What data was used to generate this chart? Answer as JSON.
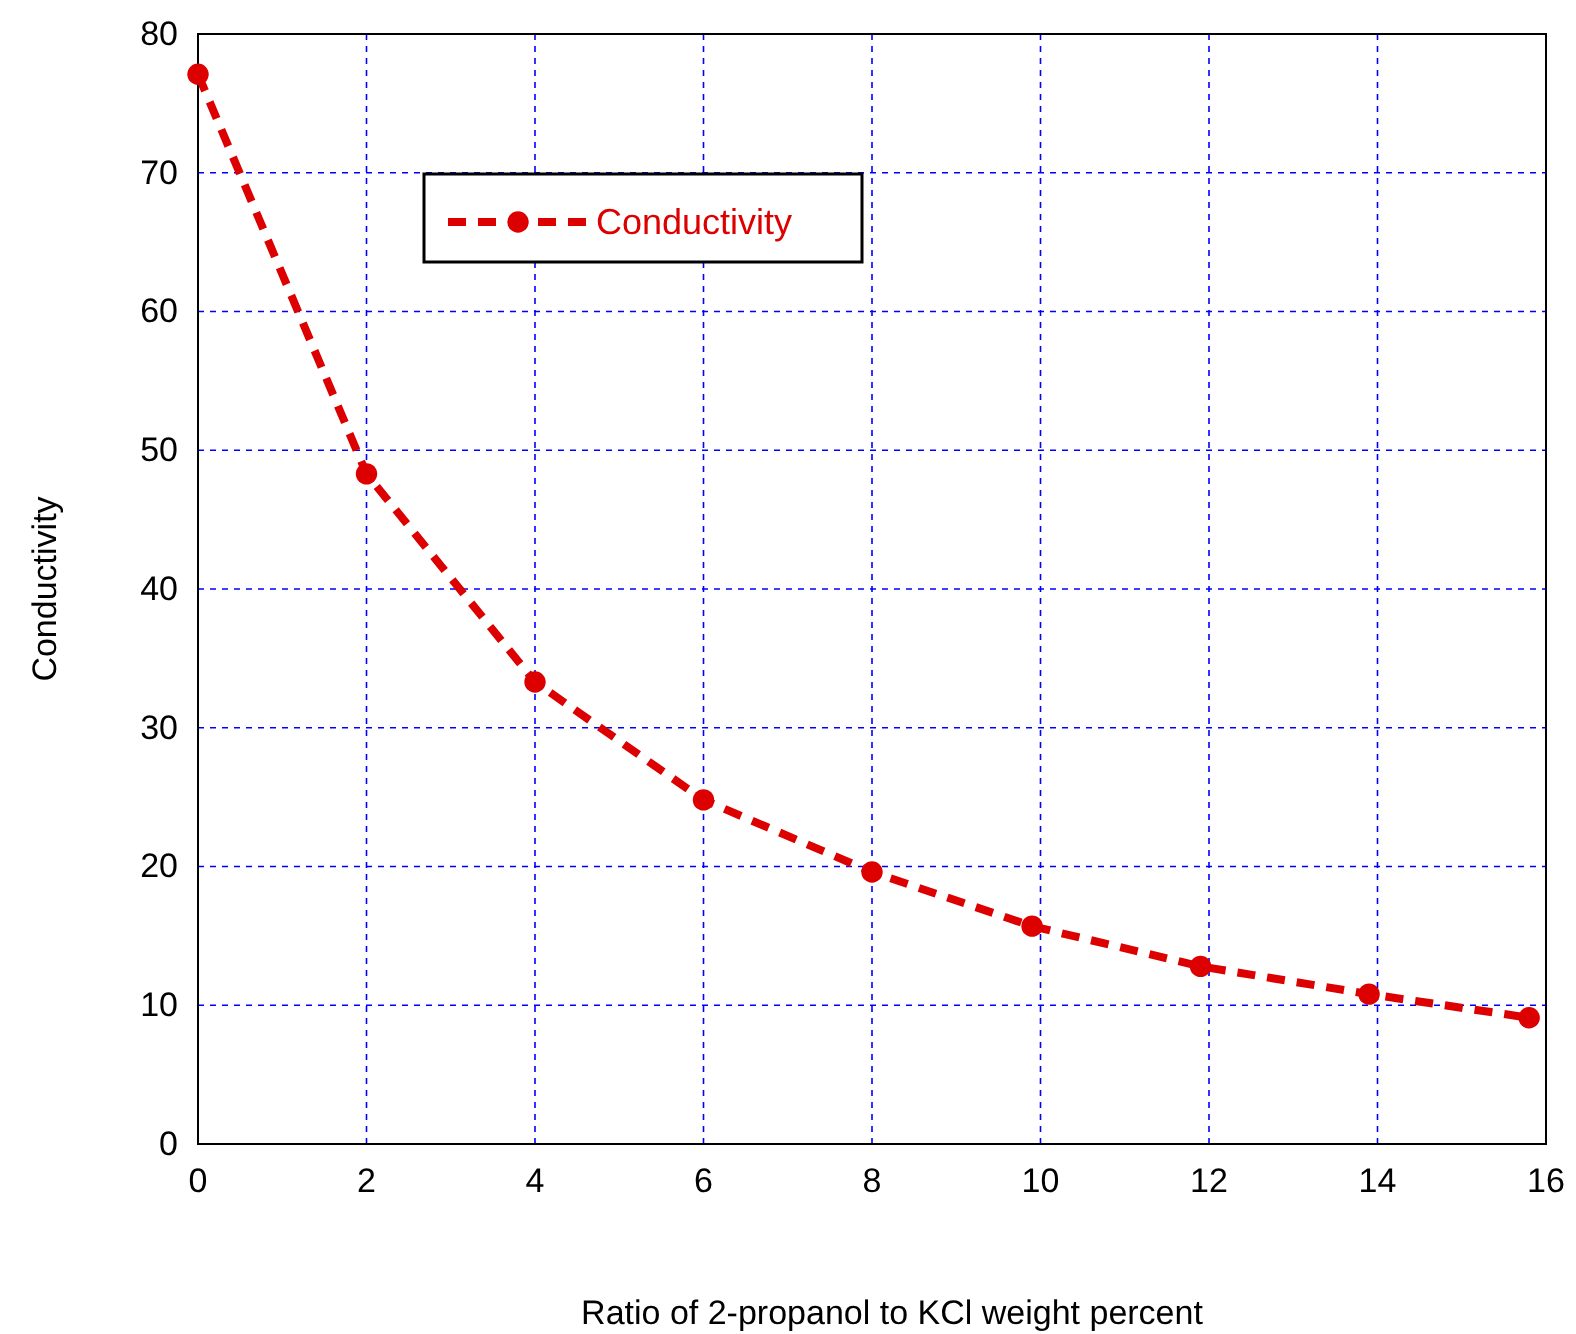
{
  "chart_data": {
    "type": "line",
    "xlabel": "Ratio of 2-propanol to KCl weight percent",
    "ylabel": "Conductivity",
    "series": [
      {
        "name": "Conductivity",
        "color": "#dd0000",
        "x": [
          0,
          2,
          4,
          6,
          8,
          9.9,
          11.9,
          13.9,
          15.8
        ],
        "values": [
          77.1,
          48.3,
          33.3,
          24.8,
          19.6,
          15.7,
          12.8,
          10.8,
          9.1
        ]
      }
    ],
    "xlim": [
      0,
      16
    ],
    "xticks": [
      0,
      2,
      4,
      6,
      8,
      10,
      12,
      14,
      16
    ],
    "ylim": [
      0,
      80
    ],
    "yticks": [
      0,
      10,
      20,
      30,
      40,
      50,
      60,
      70,
      80
    ],
    "grid": true,
    "legend": "top left",
    "marker": "circle",
    "line_style": "dashed"
  }
}
